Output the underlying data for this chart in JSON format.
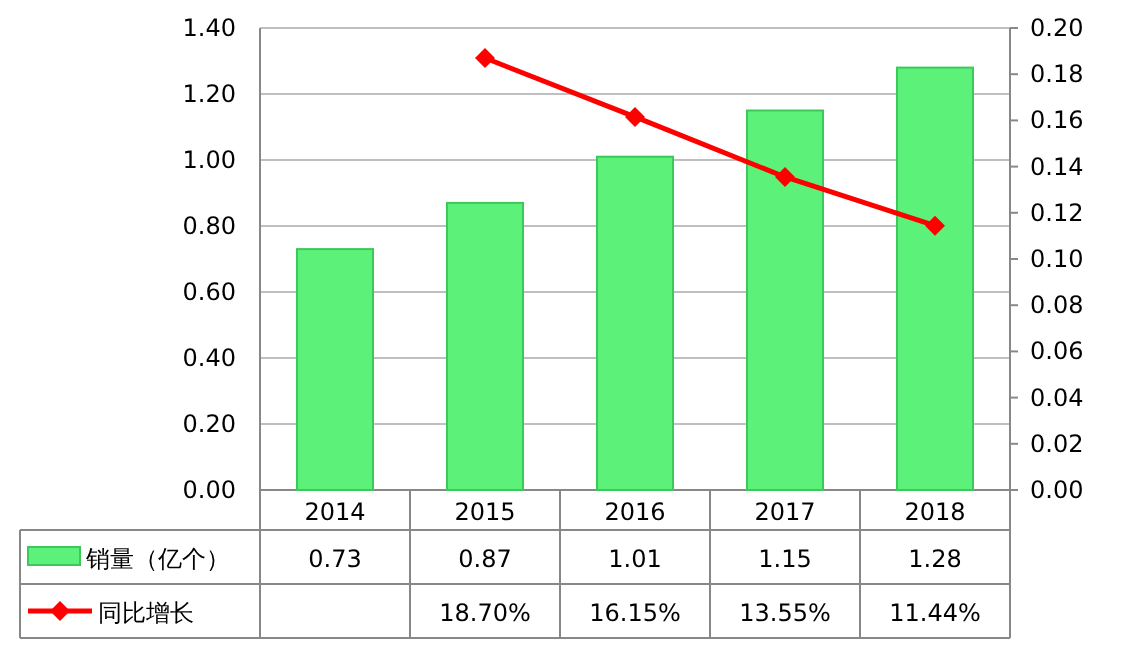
{
  "chart_data": {
    "type": "bar",
    "categories": [
      "2014",
      "2015",
      "2016",
      "2017",
      "2018"
    ],
    "series": [
      {
        "name": "销量（亿个）",
        "color": "#5cf27a",
        "values": [
          0.73,
          0.87,
          1.01,
          1.15,
          1.28
        ],
        "value_labels": [
          "0.73",
          "0.87",
          "1.01",
          "1.15",
          "1.28"
        ]
      },
      {
        "name": "同比增长",
        "type": "line",
        "axis": "y2",
        "color": "#ff0000",
        "marker": "diamond",
        "values": [
          null,
          0.187,
          0.1615,
          0.1355,
          0.1144
        ],
        "value_labels": [
          null,
          "18.70%",
          "16.15%",
          "13.55%",
          "11.44%"
        ]
      }
    ],
    "ylim": [
      0,
      1.4
    ],
    "yticks": [
      {
        "value": 0,
        "label": "0.00"
      },
      {
        "value": 0.2,
        "label": "0.20"
      },
      {
        "value": 0.4,
        "label": "0.40"
      },
      {
        "value": 0.6,
        "label": "0.60"
      },
      {
        "value": 0.8,
        "label": "0.80"
      },
      {
        "value": 1.0,
        "label": "1.00"
      },
      {
        "value": 1.2,
        "label": "1.20"
      },
      {
        "value": 1.4,
        "label": "1.40"
      }
    ],
    "y2lim": [
      0,
      0.2
    ],
    "y2ticks": [
      {
        "value": 0,
        "label": "0.00"
      },
      {
        "value": 0.02,
        "label": "0.02"
      },
      {
        "value": 0.04,
        "label": "0.04"
      },
      {
        "value": 0.06,
        "label": "0.06"
      },
      {
        "value": 0.08,
        "label": "0.08"
      },
      {
        "value": 0.1,
        "label": "0.10"
      },
      {
        "value": 0.12,
        "label": "0.12"
      },
      {
        "value": 0.14,
        "label": "0.14"
      },
      {
        "value": 0.16,
        "label": "0.16"
      },
      {
        "value": 0.18,
        "label": "0.18"
      },
      {
        "value": 0.2,
        "label": "0.20"
      }
    ],
    "grid": "y",
    "legend": "bottom left"
  }
}
